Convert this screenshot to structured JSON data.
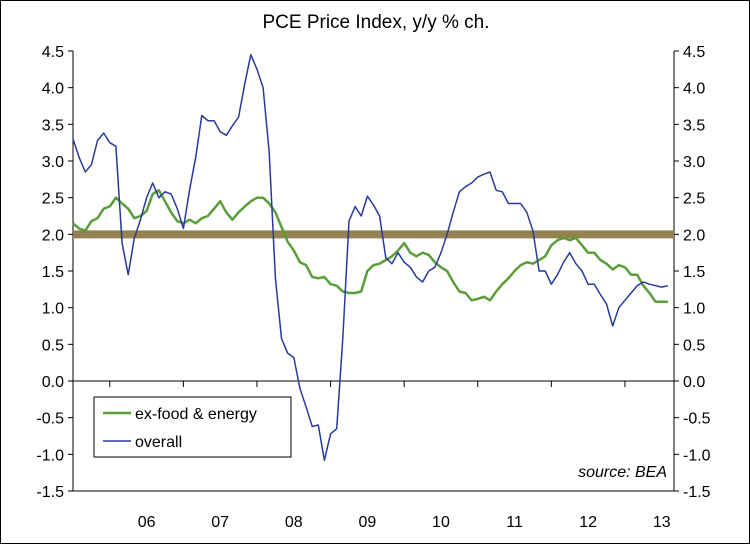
{
  "chart_data": {
    "type": "line",
    "title": "PCE Price Index, y/y % ch.",
    "xlabel": "",
    "ylabel": "",
    "ylim": [
      -1.5,
      4.5
    ],
    "yticks": [
      "4.5",
      "4.0",
      "3.5",
      "3.0",
      "2.5",
      "2.0",
      "1.5",
      "1.0",
      "0.5",
      "0.0",
      "-0.5",
      "-1.0",
      "-1.5"
    ],
    "x_start": "2005-07",
    "x_end": "2013-09",
    "xtick_labels": [
      "06",
      "07",
      "08",
      "09",
      "10",
      "11",
      "12",
      "13"
    ],
    "reference_line": {
      "value": 2.0,
      "color": "#958250"
    },
    "grid": false,
    "legend_position": "bottom-left",
    "source": "source: BEA",
    "series": [
      {
        "name": "ex-food & energy",
        "color": "#5a9e3a",
        "values": [
          2.15,
          2.08,
          2.05,
          2.18,
          2.22,
          2.35,
          2.38,
          2.5,
          2.42,
          2.35,
          2.22,
          2.25,
          2.32,
          2.55,
          2.6,
          2.45,
          2.3,
          2.18,
          2.15,
          2.2,
          2.15,
          2.22,
          2.25,
          2.35,
          2.45,
          2.3,
          2.2,
          2.3,
          2.38,
          2.45,
          2.5,
          2.5,
          2.42,
          2.3,
          2.1,
          1.9,
          1.78,
          1.62,
          1.58,
          1.42,
          1.4,
          1.42,
          1.32,
          1.3,
          1.22,
          1.2,
          1.2,
          1.22,
          1.5,
          1.58,
          1.6,
          1.65,
          1.7,
          1.78,
          1.88,
          1.75,
          1.7,
          1.75,
          1.72,
          1.62,
          1.55,
          1.5,
          1.35,
          1.22,
          1.2,
          1.1,
          1.12,
          1.15,
          1.1,
          1.22,
          1.32,
          1.4,
          1.5,
          1.58,
          1.62,
          1.6,
          1.65,
          1.7,
          1.85,
          1.92,
          1.95,
          1.92,
          1.95,
          1.85,
          1.75,
          1.75,
          1.65,
          1.6,
          1.52,
          1.58,
          1.55,
          1.45,
          1.45,
          1.3,
          1.2,
          1.08,
          1.08,
          1.08
        ]
      },
      {
        "name": "overall",
        "color": "#283a9e",
        "values": [
          3.3,
          3.05,
          2.85,
          2.95,
          3.28,
          3.38,
          3.25,
          3.2,
          1.88,
          1.45,
          1.95,
          2.2,
          2.5,
          2.7,
          2.5,
          2.58,
          2.55,
          2.35,
          2.08,
          2.6,
          3.05,
          3.62,
          3.55,
          3.55,
          3.4,
          3.35,
          3.48,
          3.6,
          4.05,
          4.45,
          4.25,
          4.0,
          3.12,
          1.4,
          0.58,
          0.38,
          0.32,
          -0.1,
          -0.35,
          -0.62,
          -0.6,
          -1.08,
          -0.72,
          -0.65,
          0.58,
          2.18,
          2.38,
          2.25,
          2.52,
          2.4,
          2.25,
          1.68,
          1.6,
          1.75,
          1.62,
          1.55,
          1.42,
          1.35,
          1.5,
          1.55,
          1.75,
          2.0,
          2.3,
          2.58,
          2.65,
          2.7,
          2.78,
          2.82,
          2.85,
          2.6,
          2.58,
          2.42,
          2.42,
          2.42,
          2.3,
          2.05,
          1.5,
          1.5,
          1.32,
          1.45,
          1.62,
          1.75,
          1.6,
          1.5,
          1.32,
          1.32,
          1.18,
          1.05,
          0.75,
          1.0,
          1.1,
          1.2,
          1.3,
          1.35,
          1.32,
          1.3,
          1.28,
          1.3
        ]
      }
    ]
  }
}
